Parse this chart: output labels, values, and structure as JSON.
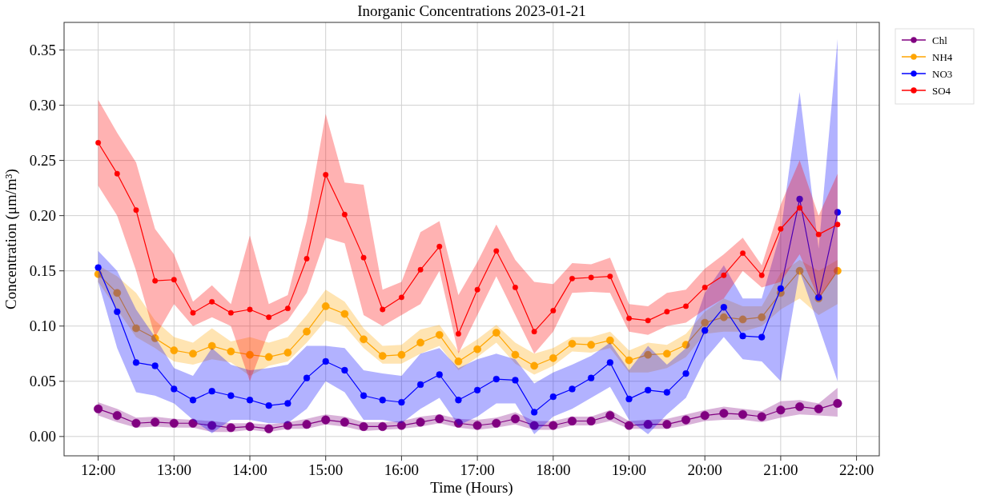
{
  "chart_data": {
    "type": "line",
    "title": "Inorganic Concentrations 2023-01-21",
    "xlabel": "Time (Hours)",
    "ylabel": "Concentration (μm/m³)",
    "x": [
      12,
      12.25,
      12.5,
      12.75,
      13,
      13.25,
      13.5,
      13.75,
      14,
      14.25,
      14.5,
      14.75,
      15,
      15.25,
      15.5,
      15.75,
      16,
      16.25,
      16.5,
      16.75,
      17,
      17.25,
      17.5,
      17.75,
      18,
      18.25,
      18.5,
      18.75,
      19,
      19.25,
      19.5,
      19.75,
      20,
      20.25,
      20.5,
      20.75,
      21,
      21.25,
      21.5,
      21.75
    ],
    "xlim": [
      11.55,
      22.3
    ],
    "xticks": [
      {
        "value": 12,
        "label": "12:00"
      },
      {
        "value": 13,
        "label": "13:00"
      },
      {
        "value": 14,
        "label": "14:00"
      },
      {
        "value": 15,
        "label": "15:00"
      },
      {
        "value": 16,
        "label": "16:00"
      },
      {
        "value": 17,
        "label": "17:00"
      },
      {
        "value": 18,
        "label": "18:00"
      },
      {
        "value": 19,
        "label": "19:00"
      },
      {
        "value": 20,
        "label": "20:00"
      },
      {
        "value": 21,
        "label": "21:00"
      },
      {
        "value": 22,
        "label": "22:00"
      }
    ],
    "ylim": [
      -0.0175,
      0.375
    ],
    "yticks": [
      {
        "value": 0,
        "label": "0.00"
      },
      {
        "value": 0.05,
        "label": "0.05"
      },
      {
        "value": 0.1,
        "label": "0.10"
      },
      {
        "value": 0.15,
        "label": "0.15"
      },
      {
        "value": 0.2,
        "label": "0.20"
      },
      {
        "value": 0.25,
        "label": "0.25"
      },
      {
        "value": 0.3,
        "label": "0.30"
      },
      {
        "value": 0.35,
        "label": "0.35"
      }
    ],
    "grid": true,
    "legend": "top right",
    "marker": "circle",
    "line_style": "solid",
    "series": [
      {
        "name": "Chl",
        "color": "#800080",
        "values": [
          0.025,
          0.019,
          0.012,
          0.013,
          0.012,
          0.012,
          0.01,
          0.008,
          0.009,
          0.007,
          0.01,
          0.011,
          0.015,
          0.013,
          0.009,
          0.009,
          0.01,
          0.013,
          0.016,
          0.012,
          0.01,
          0.012,
          0.016,
          0.01,
          0.01,
          0.014,
          0.014,
          0.019,
          0.01,
          0.011,
          0.011,
          0.015,
          0.019,
          0.021,
          0.02,
          0.018,
          0.024,
          0.027,
          0.025,
          0.03
        ],
        "upper": [
          0.031,
          0.025,
          0.017,
          0.018,
          0.016,
          0.015,
          0.014,
          0.012,
          0.012,
          0.011,
          0.013,
          0.016,
          0.02,
          0.018,
          0.013,
          0.013,
          0.014,
          0.018,
          0.02,
          0.016,
          0.015,
          0.017,
          0.022,
          0.014,
          0.014,
          0.018,
          0.018,
          0.024,
          0.014,
          0.015,
          0.016,
          0.02,
          0.024,
          0.027,
          0.025,
          0.023,
          0.032,
          0.033,
          0.03,
          0.044
        ],
        "lower": [
          0.019,
          0.013,
          0.008,
          0.009,
          0.008,
          0.008,
          0.004,
          0.004,
          0.006,
          0.004,
          0.007,
          0.007,
          0.011,
          0.009,
          0.005,
          0.006,
          0.007,
          0.009,
          0.012,
          0.008,
          0.006,
          0.008,
          0.011,
          0.006,
          0.006,
          0.01,
          0.01,
          0.014,
          0.007,
          0.007,
          0.007,
          0.01,
          0.014,
          0.015,
          0.015,
          0.013,
          0.017,
          0.02,
          0.019,
          0.018
        ]
      },
      {
        "name": "NH4",
        "color": "#ffa500",
        "values": [
          0.147,
          0.13,
          0.098,
          0.089,
          0.078,
          0.075,
          0.082,
          0.077,
          0.074,
          0.072,
          0.076,
          0.095,
          0.118,
          0.111,
          0.088,
          0.073,
          0.074,
          0.085,
          0.092,
          0.068,
          0.079,
          0.094,
          0.074,
          0.064,
          0.071,
          0.084,
          0.083,
          0.087,
          0.069,
          0.074,
          0.075,
          0.083,
          0.103,
          0.108,
          0.106,
          0.108,
          0.13,
          0.15,
          0.125,
          0.15
        ],
        "upper": [
          0.155,
          0.145,
          0.13,
          0.105,
          0.09,
          0.085,
          0.098,
          0.086,
          0.09,
          0.085,
          0.09,
          0.11,
          0.133,
          0.122,
          0.098,
          0.082,
          0.083,
          0.097,
          0.101,
          0.077,
          0.088,
          0.101,
          0.085,
          0.075,
          0.08,
          0.09,
          0.09,
          0.095,
          0.078,
          0.085,
          0.083,
          0.093,
          0.113,
          0.125,
          0.118,
          0.118,
          0.148,
          0.16,
          0.15,
          0.16
        ],
        "lower": [
          0.14,
          0.115,
          0.09,
          0.08,
          0.068,
          0.065,
          0.07,
          0.067,
          0.055,
          0.064,
          0.068,
          0.085,
          0.105,
          0.1,
          0.08,
          0.066,
          0.066,
          0.075,
          0.082,
          0.06,
          0.072,
          0.085,
          0.066,
          0.056,
          0.064,
          0.077,
          0.076,
          0.08,
          0.058,
          0.058,
          0.062,
          0.072,
          0.093,
          0.095,
          0.095,
          0.1,
          0.115,
          0.125,
          0.11,
          0.12
        ]
      },
      {
        "name": "NO3",
        "color": "#0000ff",
        "values": [
          0.153,
          0.113,
          0.067,
          0.064,
          0.043,
          0.033,
          0.041,
          0.037,
          0.033,
          0.028,
          0.03,
          0.053,
          0.068,
          0.06,
          0.037,
          0.033,
          0.031,
          0.047,
          0.056,
          0.033,
          0.042,
          0.052,
          0.051,
          0.022,
          0.036,
          0.043,
          0.053,
          0.067,
          0.034,
          0.042,
          0.04,
          0.057,
          0.096,
          0.117,
          0.091,
          0.09,
          0.134,
          0.215,
          0.126,
          0.203
        ],
        "upper": [
          0.168,
          0.15,
          0.115,
          0.09,
          0.062,
          0.055,
          0.08,
          0.065,
          0.06,
          0.062,
          0.065,
          0.082,
          0.082,
          0.08,
          0.06,
          0.057,
          0.055,
          0.075,
          0.08,
          0.062,
          0.07,
          0.075,
          0.07,
          0.048,
          0.058,
          0.065,
          0.073,
          0.085,
          0.06,
          0.082,
          0.065,
          0.08,
          0.13,
          0.155,
          0.125,
          0.125,
          0.185,
          0.312,
          0.17,
          0.36
        ],
        "lower": [
          0.14,
          0.08,
          0.04,
          0.037,
          0.03,
          0.015,
          0.003,
          0.015,
          0.015,
          0.012,
          0.012,
          0.025,
          0.05,
          0.04,
          0.015,
          0.015,
          0.012,
          0.025,
          0.035,
          0.01,
          0.018,
          0.03,
          0.03,
          0.002,
          0.018,
          0.025,
          0.035,
          0.045,
          0.015,
          0.002,
          0.02,
          0.035,
          0.07,
          0.09,
          0.07,
          0.068,
          0.05,
          0.15,
          0.1,
          0.05
        ]
      },
      {
        "name": "SO4",
        "color": "#ff0000",
        "values": [
          0.266,
          0.238,
          0.205,
          0.141,
          0.142,
          0.112,
          0.122,
          0.112,
          0.115,
          0.108,
          0.116,
          0.161,
          0.237,
          0.201,
          0.162,
          0.115,
          0.126,
          0.151,
          0.172,
          0.093,
          0.133,
          0.168,
          0.135,
          0.095,
          0.114,
          0.143,
          0.144,
          0.145,
          0.107,
          0.105,
          0.113,
          0.118,
          0.135,
          0.146,
          0.166,
          0.146,
          0.188,
          0.207,
          0.183,
          0.192
        ],
        "upper": [
          0.305,
          0.275,
          0.248,
          0.188,
          0.165,
          0.122,
          0.137,
          0.12,
          0.182,
          0.12,
          0.128,
          0.195,
          0.292,
          0.23,
          0.228,
          0.133,
          0.14,
          0.185,
          0.195,
          0.128,
          0.158,
          0.192,
          0.16,
          0.14,
          0.138,
          0.157,
          0.156,
          0.162,
          0.12,
          0.118,
          0.13,
          0.133,
          0.152,
          0.165,
          0.18,
          0.155,
          0.21,
          0.25,
          0.2,
          0.238
        ],
        "lower": [
          0.227,
          0.2,
          0.15,
          0.09,
          0.12,
          0.1,
          0.108,
          0.1,
          0.05,
          0.095,
          0.105,
          0.13,
          0.18,
          0.175,
          0.11,
          0.1,
          0.11,
          0.12,
          0.15,
          0.075,
          0.11,
          0.145,
          0.11,
          0.075,
          0.095,
          0.13,
          0.131,
          0.13,
          0.095,
          0.092,
          0.1,
          0.103,
          0.115,
          0.125,
          0.15,
          0.135,
          0.14,
          0.165,
          0.125,
          0.15
        ]
      }
    ]
  }
}
